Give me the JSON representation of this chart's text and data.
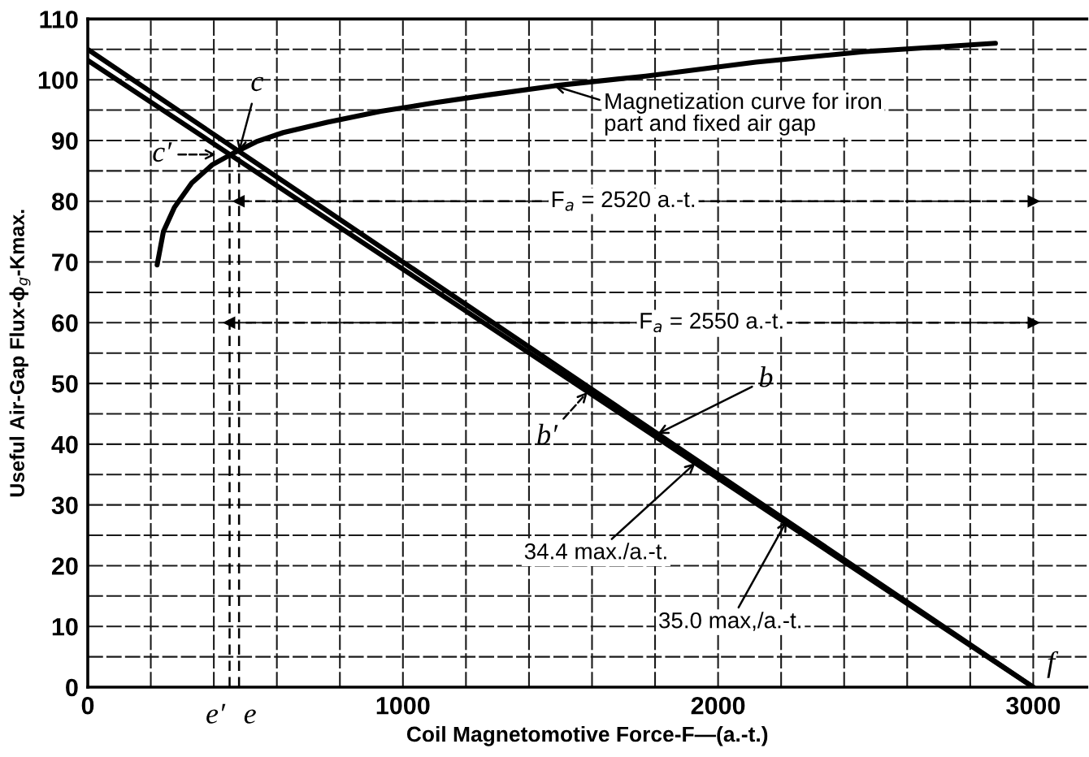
{
  "chart_data": {
    "type": "line",
    "xlabel": "Coil Magnetomotive Force-F—(a.-t.)",
    "ylabel": "Useful Air-Gap Flux-ϕ$_{g}$-Kmax.",
    "xlim": [
      0,
      3170
    ],
    "ylim": [
      0,
      110
    ],
    "xticks": [
      0,
      {
        "value": 200,
        "label": null
      },
      {
        "value": 400,
        "label": null
      },
      {
        "value": 600,
        "label": null
      },
      {
        "value": 800,
        "label": null
      },
      1000,
      {
        "value": 1200,
        "label": null
      },
      {
        "value": 1400,
        "label": null
      },
      {
        "value": 1600,
        "label": null
      },
      {
        "value": 1800,
        "label": null
      },
      2000,
      {
        "value": 2200,
        "label": null
      },
      {
        "value": 2400,
        "label": null
      },
      {
        "value": 2600,
        "label": null
      },
      {
        "value": 2800,
        "label": null
      },
      3000
    ],
    "yticks": [
      0,
      {
        "value": 5,
        "label": null
      },
      10,
      {
        "value": 15,
        "label": null
      },
      20,
      {
        "value": 25,
        "label": null
      },
      30,
      {
        "value": 35,
        "label": null
      },
      40,
      {
        "value": 45,
        "label": null
      },
      50,
      {
        "value": 55,
        "label": null
      },
      60,
      {
        "value": 65,
        "label": null
      },
      70,
      {
        "value": 75,
        "label": null
      },
      80,
      {
        "value": 85,
        "label": null
      },
      90,
      {
        "value": 95,
        "label": null
      },
      100,
      {
        "value": 105,
        "label": null
      },
      110
    ],
    "grid": true,
    "series": [
      {
        "color": "#000000",
        "x": [
          220,
          240,
          275,
          330,
          395,
          465,
          535,
          620,
          760,
          930,
          1100,
          1270,
          1480,
          1770,
          2120,
          2460,
          2880
        ],
        "values": [
          69.5,
          75,
          79,
          83,
          86,
          88,
          89.8,
          91.3,
          93,
          94.8,
          96.2,
          97.5,
          99,
          100.6,
          102.9,
          104.6,
          106
        ]
      },
      {
        "color": "#000000",
        "x": [
          0,
          3000
        ],
        "values": [
          105,
          0
        ]
      },
      {
        "color": "#000000",
        "x": [
          0,
          3000
        ],
        "values": [
          103.2,
          0
        ]
      },
      {
        "color": "#000000",
        "x": [
          450,
          450
        ],
        "values": [
          0,
          87.7
        ],
        "line_style": "dashed"
      },
      {
        "color": "#000000",
        "x": [
          480,
          480
        ],
        "values": [
          0,
          88.2
        ],
        "line_style": "dashed"
      },
      {
        "color": "#000000",
        "x": [
          480,
          3000
        ],
        "values": [
          80,
          80
        ],
        "line_style": "dashed",
        "marker": "triangle"
      },
      {
        "color": "#000000",
        "x": [
          450,
          3000
        ],
        "values": [
          60,
          60
        ],
        "line_style": "dashed",
        "marker": "triangle"
      }
    ],
    "annotations": [
      {
        "text": "Magnetization curve for iron\npart and fixed air gap",
        "x": 1480,
        "y": 99
      },
      {
        "text": "c",
        "x": 480,
        "y": 88.2
      },
      {
        "text": "c′",
        "x": 450,
        "y": 87.7
      },
      {
        "text": "b",
        "x": 1808,
        "y": 41.7
      },
      {
        "text": "b′",
        "x": 1586,
        "y": 48.6
      },
      {
        "text": "34.4 max./a.-t.",
        "x": 1928,
        "y": 36.9
      },
      {
        "text": "35.0 max,/a.-t.",
        "x": 2218,
        "y": 27.4
      },
      {
        "text": "F$_{a}$ = 2520 a.-t.",
        "x": 1700,
        "y": 80
      },
      {
        "text": "F$_{a}$ = 2550 a.-t.",
        "x": 1980,
        "y": 60
      },
      {
        "text": "e′",
        "x": 450,
        "y": 0
      },
      {
        "text": "e",
        "x": 480,
        "y": 0
      },
      {
        "text": "f",
        "x": 3000,
        "y": 0
      }
    ]
  }
}
